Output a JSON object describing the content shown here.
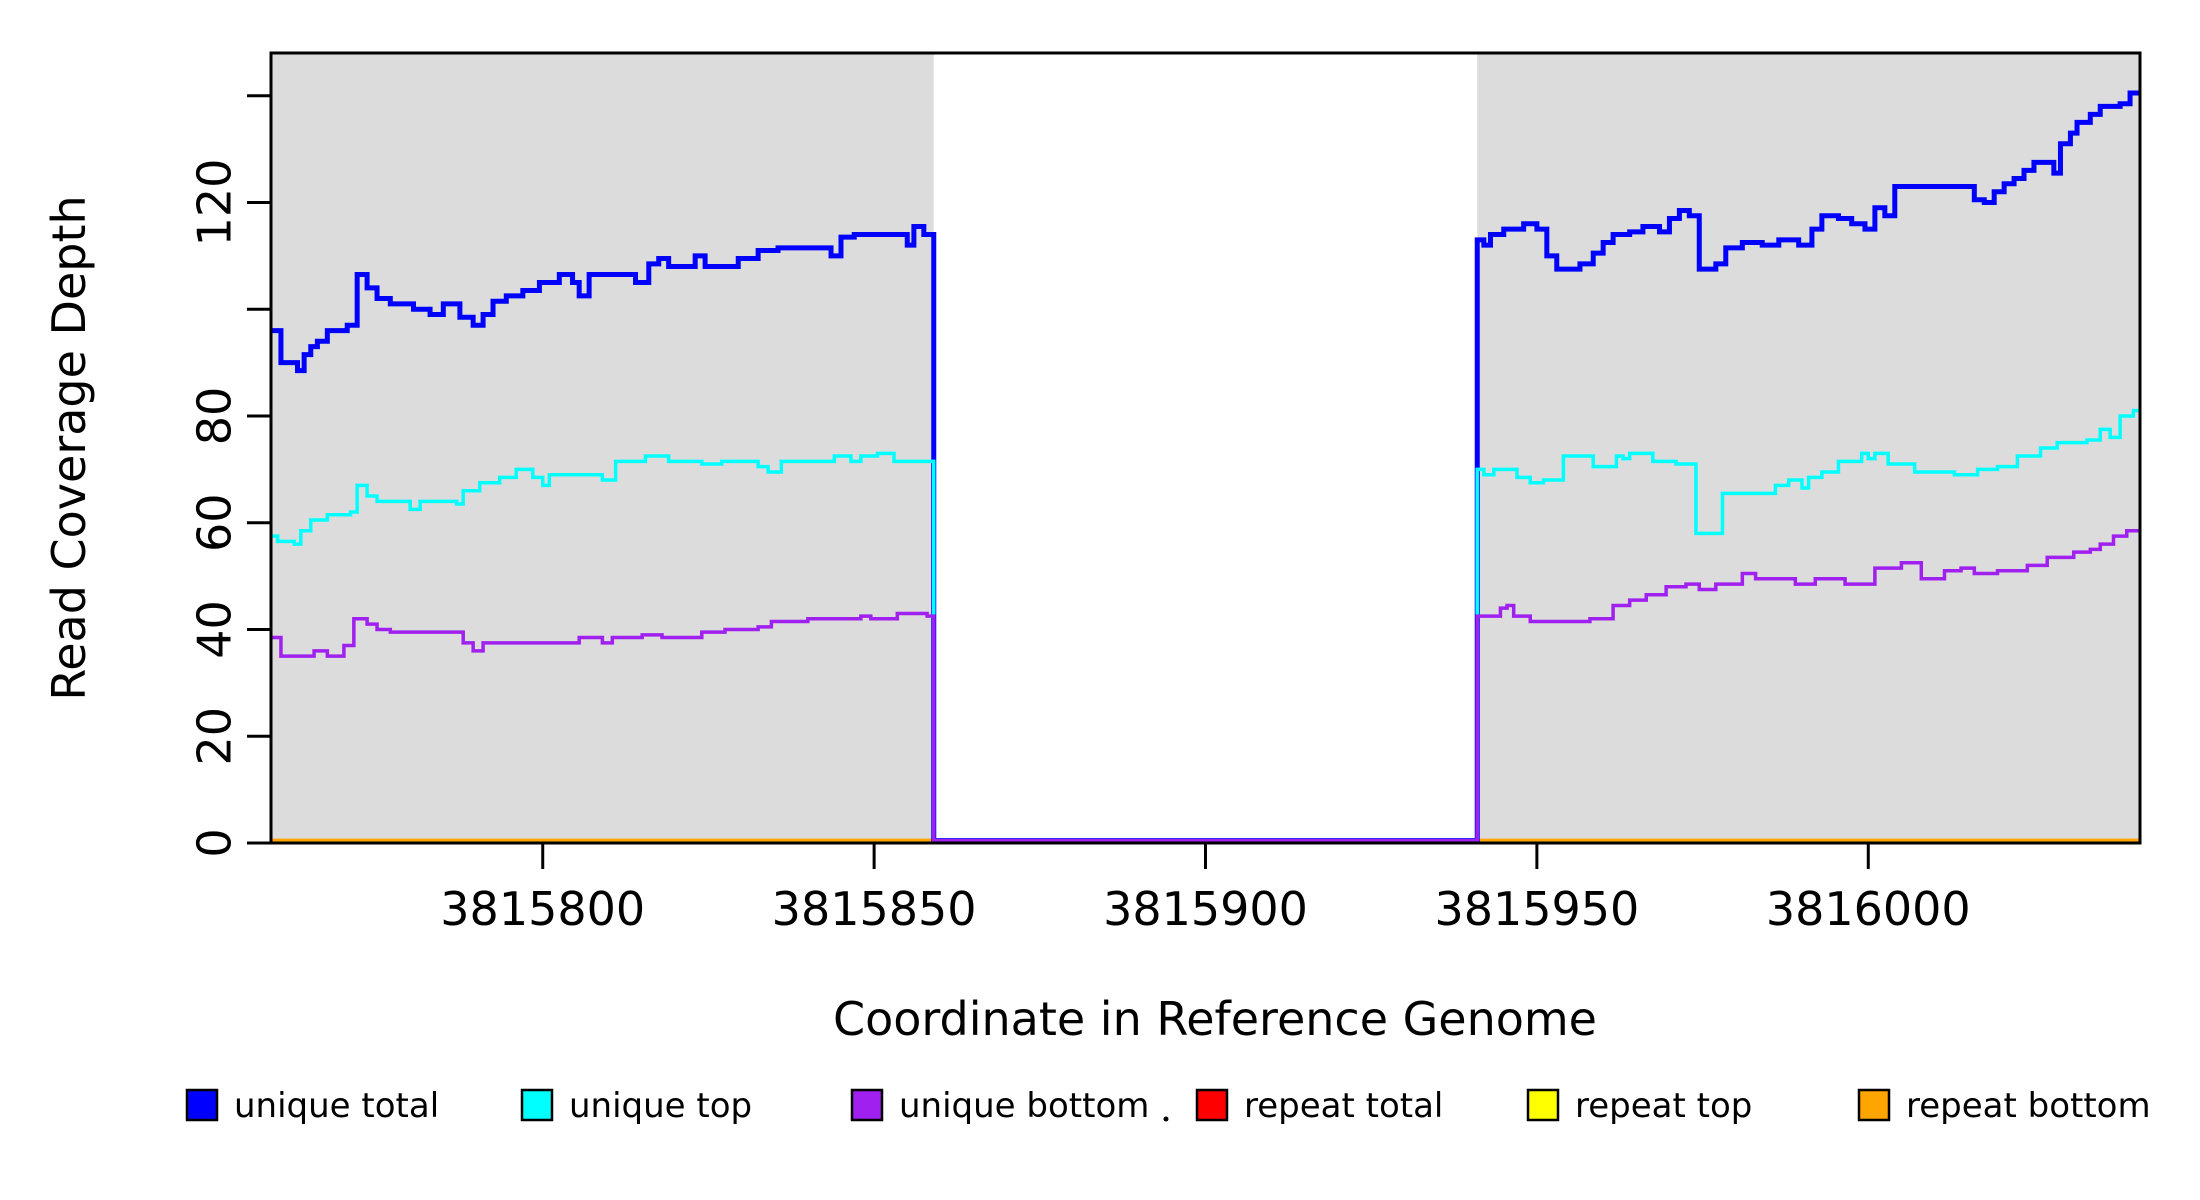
{
  "chart_data": {
    "type": "line",
    "step": true,
    "title": "",
    "xlabel": "Coordinate in Reference Genome",
    "ylabel": "Read Coverage Depth",
    "xlim": [
      3815759,
      3816041
    ],
    "ylim": [
      0,
      148
    ],
    "x_ticks": [
      3815800,
      3815850,
      3815900,
      3815950,
      3816000
    ],
    "y_ticks": [
      0,
      20,
      40,
      60,
      80,
      100,
      120,
      140
    ],
    "y_tick_labels_shown": [
      0,
      20,
      40,
      60,
      80,
      120
    ],
    "grid": false,
    "plot_background": "#FFFFFF",
    "shade_color": "#DCDCDC",
    "shaded_regions": [
      {
        "x0": 3815759,
        "x1": 3815859
      },
      {
        "x0": 3815941,
        "x1": 3816041
      }
    ],
    "coverage_gap": {
      "x0": 3815859,
      "x1": 3815941
    },
    "legend_position": "bottom",
    "draw_order": [
      "repeat total",
      "repeat top",
      "repeat bottom",
      "unique total",
      "unique top",
      "unique bottom"
    ],
    "series": [
      {
        "name": "unique total",
        "color": "#0000FF",
        "line_width": 5,
        "steps": [
          [
            3815759,
            96
          ],
          [
            3815760.5,
            90
          ],
          [
            3815763,
            88.5
          ],
          [
            3815764,
            91.5
          ],
          [
            3815765,
            93
          ],
          [
            3815766,
            94
          ],
          [
            3815767.5,
            96
          ],
          [
            3815770.5,
            97
          ],
          [
            3815772,
            106.5
          ],
          [
            3815773.5,
            104
          ],
          [
            3815775,
            102
          ],
          [
            3815777,
            101
          ],
          [
            3815780.5,
            100
          ],
          [
            3815783,
            99
          ],
          [
            3815785,
            101
          ],
          [
            3815787.5,
            98.5
          ],
          [
            3815789.5,
            97
          ],
          [
            3815791,
            99
          ],
          [
            3815792.5,
            101.5
          ],
          [
            3815794.5,
            102.5
          ],
          [
            3815797,
            103.5
          ],
          [
            3815799.5,
            105
          ],
          [
            3815802.5,
            106.5
          ],
          [
            3815804.5,
            105
          ],
          [
            3815805.5,
            102.5
          ],
          [
            3815807,
            106.5
          ],
          [
            3815814,
            105
          ],
          [
            3815816,
            108.5
          ],
          [
            3815817.5,
            109.5
          ],
          [
            3815819,
            108
          ],
          [
            3815823,
            110
          ],
          [
            3815824.5,
            108
          ],
          [
            3815829.5,
            109.5
          ],
          [
            3815832.5,
            111
          ],
          [
            3815835.5,
            111.5
          ],
          [
            3815843.5,
            110
          ],
          [
            3815845,
            113.5
          ],
          [
            3815847,
            114
          ],
          [
            3815855,
            112
          ],
          [
            3815856,
            115.5
          ],
          [
            3815857.5,
            114
          ],
          [
            3815859,
            0
          ],
          [
            3815941,
            113
          ],
          [
            3815942,
            112
          ],
          [
            3815943,
            114
          ],
          [
            3815945,
            115
          ],
          [
            3815948,
            116
          ],
          [
            3815950,
            115
          ],
          [
            3815951.5,
            110
          ],
          [
            3815953,
            107.5
          ],
          [
            3815956.5,
            108.5
          ],
          [
            3815958.5,
            110.5
          ],
          [
            3815960,
            112.5
          ],
          [
            3815961.5,
            114
          ],
          [
            3815964,
            114.5
          ],
          [
            3815966,
            115.5
          ],
          [
            3815968.5,
            114.5
          ],
          [
            3815970,
            117
          ],
          [
            3815971.5,
            118.5
          ],
          [
            3815973,
            117.5
          ],
          [
            3815974.5,
            107.5
          ],
          [
            3815977,
            108.5
          ],
          [
            3815978.5,
            111.5
          ],
          [
            3815981,
            112.5
          ],
          [
            3815984,
            112
          ],
          [
            3815986.5,
            113
          ],
          [
            3815989.5,
            112
          ],
          [
            3815991.5,
            115
          ],
          [
            3815993,
            117.5
          ],
          [
            3815995.5,
            117
          ],
          [
            3815997.5,
            116
          ],
          [
            3815999.5,
            115
          ],
          [
            3816001,
            119
          ],
          [
            3816002.5,
            117.5
          ],
          [
            3816004,
            123
          ],
          [
            3816016,
            120.5
          ],
          [
            3816017.5,
            120
          ],
          [
            3816019,
            122
          ],
          [
            3816020.5,
            123.5
          ],
          [
            3816022,
            124.5
          ],
          [
            3816023.5,
            126
          ],
          [
            3816025,
            127.5
          ],
          [
            3816028,
            125.5
          ],
          [
            3816029,
            131
          ],
          [
            3816030.5,
            133
          ],
          [
            3816031.5,
            135
          ],
          [
            3816033.5,
            136.5
          ],
          [
            3816035,
            138
          ],
          [
            3816038,
            138.5
          ],
          [
            3816039.5,
            140.5
          ],
          [
            3816041,
            140.5
          ]
        ]
      },
      {
        "name": "unique top",
        "color": "#00FFFF",
        "line_width": 3.5,
        "steps": [
          [
            3815759,
            57.5
          ],
          [
            3815760,
            56.5
          ],
          [
            3815762.5,
            56
          ],
          [
            3815763.5,
            58.5
          ],
          [
            3815765,
            60.5
          ],
          [
            3815767.5,
            61.5
          ],
          [
            3815771,
            62
          ],
          [
            3815772,
            67
          ],
          [
            3815773.5,
            65
          ],
          [
            3815775,
            64
          ],
          [
            3815780,
            62.5
          ],
          [
            3815781.5,
            64
          ],
          [
            3815787,
            63.5
          ],
          [
            3815788,
            66
          ],
          [
            3815790.5,
            67.5
          ],
          [
            3815793.5,
            68.5
          ],
          [
            3815796,
            70
          ],
          [
            3815798.5,
            68.5
          ],
          [
            3815800,
            67
          ],
          [
            3815801,
            69
          ],
          [
            3815809,
            68
          ],
          [
            3815811,
            71.5
          ],
          [
            3815815.5,
            72.5
          ],
          [
            3815819,
            71.5
          ],
          [
            3815824,
            71
          ],
          [
            3815827,
            71.5
          ],
          [
            3815832.5,
            70.5
          ],
          [
            3815834,
            69.5
          ],
          [
            3815836,
            71.5
          ],
          [
            3815844,
            72.5
          ],
          [
            3815846.5,
            71.5
          ],
          [
            3815848,
            72.5
          ],
          [
            3815850.5,
            73
          ],
          [
            3815853,
            71.5
          ],
          [
            3815859,
            0
          ],
          [
            3815941,
            70
          ],
          [
            3815942,
            69
          ],
          [
            3815943.5,
            70
          ],
          [
            3815947,
            68.5
          ],
          [
            3815949,
            67.5
          ],
          [
            3815951,
            68
          ],
          [
            3815954,
            72.5
          ],
          [
            3815958.5,
            70.5
          ],
          [
            3815962,
            72.5
          ],
          [
            3815963,
            72
          ],
          [
            3815964,
            73
          ],
          [
            3815967.5,
            71.5
          ],
          [
            3815971,
            71
          ],
          [
            3815974,
            58
          ],
          [
            3815978,
            65.5
          ],
          [
            3815986,
            67
          ],
          [
            3815988,
            68
          ],
          [
            3815990,
            66.5
          ],
          [
            3815991,
            68.5
          ],
          [
            3815993,
            69.5
          ],
          [
            3815995.5,
            71.5
          ],
          [
            3815999,
            73
          ],
          [
            3816000,
            72
          ],
          [
            3816001,
            73
          ],
          [
            3816003,
            71
          ],
          [
            3816007,
            69.5
          ],
          [
            3816013,
            69
          ],
          [
            3816016.5,
            70
          ],
          [
            3816019.5,
            70.5
          ],
          [
            3816022.5,
            72.5
          ],
          [
            3816026,
            74
          ],
          [
            3816028.5,
            75
          ],
          [
            3816033,
            75.5
          ],
          [
            3816035,
            77.5
          ],
          [
            3816036.5,
            76
          ],
          [
            3816038,
            80
          ],
          [
            3816040,
            81
          ],
          [
            3816041,
            81
          ]
        ]
      },
      {
        "name": "unique bottom",
        "color": "#A020F0",
        "line_width": 3.5,
        "steps": [
          [
            3815759,
            38.5
          ],
          [
            3815760.5,
            35
          ],
          [
            3815765.5,
            36
          ],
          [
            3815767.5,
            35
          ],
          [
            3815770,
            37
          ],
          [
            3815771.5,
            42
          ],
          [
            3815773.5,
            41
          ],
          [
            3815775,
            40
          ],
          [
            3815777,
            39.5
          ],
          [
            3815788,
            37.5
          ],
          [
            3815789.5,
            36
          ],
          [
            3815791,
            37.5
          ],
          [
            3815805.5,
            38.5
          ],
          [
            3815809,
            37.5
          ],
          [
            3815810.5,
            38.5
          ],
          [
            3815815,
            39
          ],
          [
            3815818,
            38.5
          ],
          [
            3815824,
            39.5
          ],
          [
            3815827.5,
            40
          ],
          [
            3815832.5,
            40.5
          ],
          [
            3815834.5,
            41.5
          ],
          [
            3815840,
            42
          ],
          [
            3815848,
            42.5
          ],
          [
            3815849.5,
            42
          ],
          [
            3815853.5,
            43
          ],
          [
            3815858,
            42.5
          ],
          [
            3815859,
            0
          ],
          [
            3815941,
            42.5
          ],
          [
            3815944.5,
            44
          ],
          [
            3815945.5,
            44.5
          ],
          [
            3815946.5,
            42.5
          ],
          [
            3815949,
            41.5
          ],
          [
            3815958,
            42
          ],
          [
            3815961.5,
            44.5
          ],
          [
            3815964,
            45.5
          ],
          [
            3815966.5,
            46.5
          ],
          [
            3815969.5,
            48
          ],
          [
            3815972.5,
            48.5
          ],
          [
            3815974.5,
            47.5
          ],
          [
            3815977,
            48.5
          ],
          [
            3815981,
            50.5
          ],
          [
            3815983,
            49.5
          ],
          [
            3815989,
            48.5
          ],
          [
            3815992,
            49.5
          ],
          [
            3815996.5,
            48.5
          ],
          [
            3816001,
            51.5
          ],
          [
            3816005,
            52.5
          ],
          [
            3816008,
            49.5
          ],
          [
            3816011.5,
            51
          ],
          [
            3816014,
            51.5
          ],
          [
            3816016,
            50.5
          ],
          [
            3816019.5,
            51
          ],
          [
            3816024,
            52
          ],
          [
            3816027,
            53.5
          ],
          [
            3816031,
            54.5
          ],
          [
            3816033.5,
            55
          ],
          [
            3816035,
            56
          ],
          [
            3816037,
            57.5
          ],
          [
            3816039,
            58.5
          ],
          [
            3816041,
            58.5
          ]
        ]
      },
      {
        "name": "repeat total",
        "color": "#FF0000",
        "line_width": 3.5,
        "steps": [
          [
            3815759,
            0
          ],
          [
            3816041,
            0
          ]
        ]
      },
      {
        "name": "repeat top",
        "color": "#FFFF00",
        "line_width": 3.5,
        "steps": [
          [
            3815759,
            0
          ],
          [
            3816041,
            0
          ]
        ]
      },
      {
        "name": "repeat bottom",
        "color": "#FFA500",
        "line_width": 3.5,
        "steps": [
          [
            3815759,
            0
          ],
          [
            3816041,
            0
          ]
        ]
      }
    ],
    "legend": {
      "items": [
        {
          "label": "unique total",
          "color": "#0000FF"
        },
        {
          "label": "unique top",
          "color": "#00FFFF"
        },
        {
          "label": "unique bottom",
          "color": "#A020F0"
        },
        {
          "label": "repeat total",
          "color": "#FF0000"
        },
        {
          "label": "repeat top",
          "color": "#FFFF00"
        },
        {
          "label": "repeat bottom",
          "color": "#FFA500"
        }
      ]
    }
  }
}
